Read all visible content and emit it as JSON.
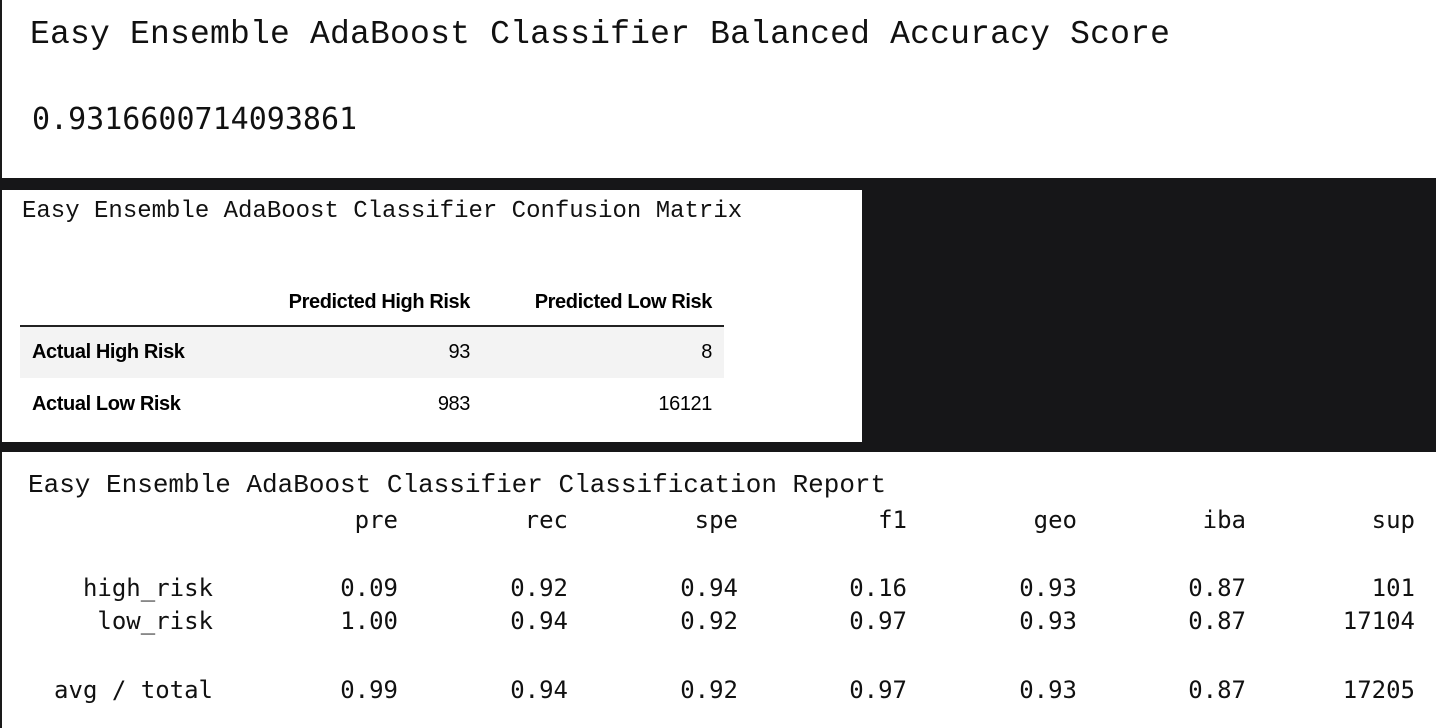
{
  "balanced_accuracy": {
    "title": "Easy Ensemble AdaBoost Classifier Balanced Accuracy Score",
    "value": "0.9316600714093861"
  },
  "confusion_matrix": {
    "title": "Easy Ensemble AdaBoost Classifier Confusion Matrix",
    "columns": [
      "",
      "Predicted High Risk",
      "Predicted Low Risk"
    ],
    "rows": [
      {
        "label": "Actual High Risk",
        "values": [
          "93",
          "8"
        ]
      },
      {
        "label": "Actual Low Risk",
        "values": [
          "983",
          "16121"
        ]
      }
    ]
  },
  "classification_report": {
    "title": "Easy Ensemble AdaBoost Classifier Classification Report",
    "columns": [
      "pre",
      "rec",
      "spe",
      "f1",
      "geo",
      "iba",
      "sup"
    ],
    "rows": [
      {
        "label": "high_risk",
        "values": [
          "0.09",
          "0.92",
          "0.94",
          "0.16",
          "0.93",
          "0.87",
          "101"
        ]
      },
      {
        "label": "low_risk",
        "values": [
          "1.00",
          "0.94",
          "0.92",
          "0.97",
          "0.93",
          "0.87",
          "17104"
        ]
      },
      {
        "label": "avg / total",
        "values": [
          "0.99",
          "0.94",
          "0.92",
          "0.97",
          "0.93",
          "0.87",
          "17205"
        ]
      }
    ]
  },
  "colors": {
    "background": "#ffffff",
    "dark_band": "#161618",
    "text": "#111111",
    "table_stripe": "#f3f3f3"
  }
}
